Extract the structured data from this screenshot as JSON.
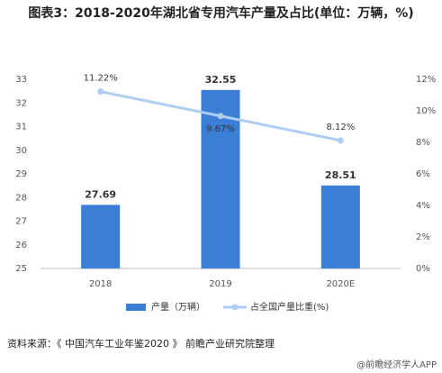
{
  "chart_data": {
    "type": "bar_line",
    "title": "图表3：2018-2020年湖北省专用汽车产量及占比(单位：万辆，%)",
    "categories": [
      "2018",
      "2019",
      "2020E"
    ],
    "series": [
      {
        "name": "产量（万辆）",
        "type": "bar",
        "color": "#3a7fd5",
        "values": [
          27.69,
          32.55,
          28.51
        ]
      },
      {
        "name": "占全国产量比重(%)",
        "type": "line",
        "axis": "y2",
        "color": "#aecdf2",
        "values": [
          11.22,
          9.67,
          8.12
        ],
        "value_labels": [
          "11.22%",
          "9.67%",
          "8.12%"
        ]
      }
    ],
    "ylim": [
      25,
      33
    ],
    "yticks": [
      25,
      26,
      27,
      28,
      29,
      30,
      31,
      32,
      33
    ],
    "y2lim": [
      0,
      12
    ],
    "y2ticks": [
      {
        "value": 0,
        "label": "0%"
      },
      {
        "value": 2,
        "label": "2%"
      },
      {
        "value": 4,
        "label": "4%"
      },
      {
        "value": 6,
        "label": "6%"
      },
      {
        "value": 8,
        "label": "8%"
      },
      {
        "value": 10,
        "label": "10%"
      },
      {
        "value": 12,
        "label": "12%"
      }
    ],
    "grid": false,
    "legend": "bottom",
    "source": "资料来源：《 中国汽车工业年鉴2020 》 前瞻产业研究院整理",
    "brand": "@前瞻经济学人APP"
  }
}
